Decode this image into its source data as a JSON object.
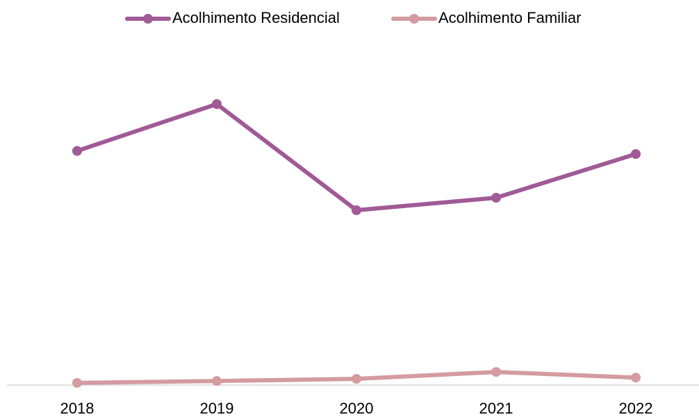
{
  "chart_data": {
    "type": "line",
    "categories": [
      "2018",
      "2019",
      "2020",
      "2021",
      "2022"
    ],
    "series": [
      {
        "name": "Acolhimento Residencial",
        "color": "#a05a96",
        "values": [
          75,
          90,
          56,
          60,
          74
        ]
      },
      {
        "name": "Acolhimento Familiar",
        "color": "#d49ba0",
        "values": [
          0.7,
          1.3,
          2,
          4.2,
          2.4
        ]
      }
    ],
    "ylim": [
      0,
      100
    ],
    "legend": "top"
  }
}
